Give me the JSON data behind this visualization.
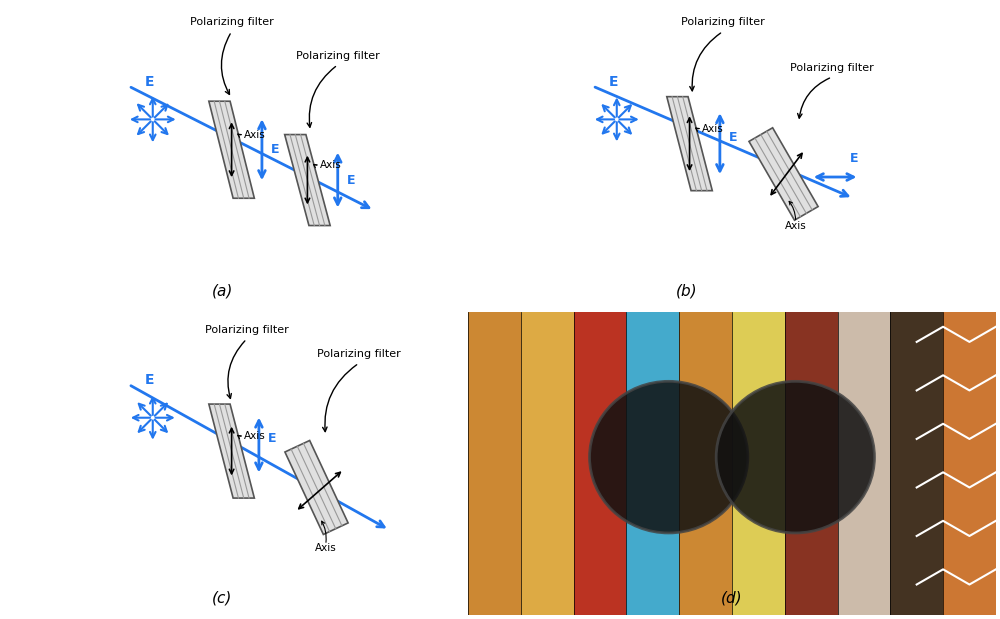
{
  "bg_color": "#ffffff",
  "blue": "#3399ff",
  "dark_blue": "#1155cc",
  "gray_light": "#d8d8d8",
  "gray_dark": "#888888",
  "black": "#000000",
  "fig_w": 10.0,
  "fig_h": 6.19,
  "panel_labels": [
    "(a)",
    "(b)",
    "(c)",
    "(d)"
  ],
  "arrow_color": "#2277ee",
  "text_color": "#000000",
  "filter_color": "#cccccc",
  "filter_edge": "#888888"
}
